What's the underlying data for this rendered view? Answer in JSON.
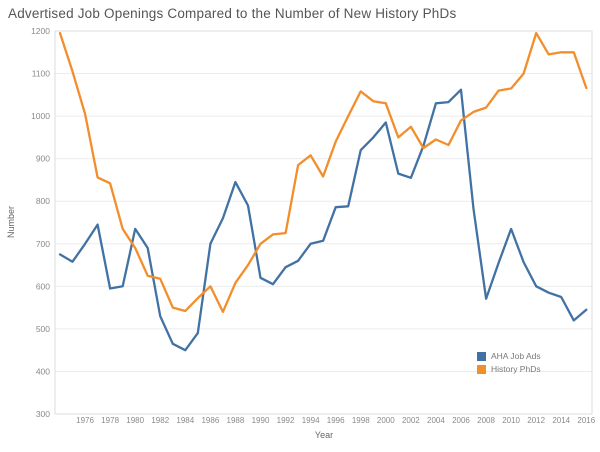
{
  "chart_data": {
    "type": "line",
    "title": "Advertised Job Openings Compared to the Number of New History PhDs",
    "xlabel": "Year",
    "ylabel": "Number",
    "ylim": [
      300,
      1200
    ],
    "ytick_step": 100,
    "yticks": [
      300,
      400,
      500,
      600,
      700,
      800,
      900,
      1000,
      1100,
      1200
    ],
    "xtick_labels": [
      "1976",
      "1978",
      "1980",
      "1982",
      "1984",
      "1986",
      "1988",
      "1990",
      "1992",
      "1994",
      "1996",
      "1998",
      "2000",
      "2002",
      "2004",
      "2006",
      "2008",
      "2010",
      "2012",
      "2014",
      "2016"
    ],
    "x": [
      1974,
      1975,
      1976,
      1977,
      1978,
      1979,
      1980,
      1981,
      1982,
      1983,
      1984,
      1985,
      1986,
      1987,
      1988,
      1989,
      1990,
      1991,
      1992,
      1993,
      1994,
      1995,
      1996,
      1997,
      1998,
      1999,
      2000,
      2001,
      2002,
      2003,
      2004,
      2005,
      2006,
      2007,
      2008,
      2009,
      2010,
      2011,
      2012,
      2013,
      2014,
      2015,
      2016
    ],
    "series": [
      {
        "name": "AHA Job Ads",
        "color": "#4272a4",
        "values": [
          675,
          658,
          700,
          745,
          595,
          600,
          735,
          690,
          530,
          465,
          450,
          490,
          700,
          760,
          845,
          790,
          620,
          605,
          645,
          660,
          700,
          707,
          786,
          788,
          920,
          950,
          985,
          865,
          855,
          930,
          1030,
          1033,
          1062,
          782,
          571,
          655,
          735,
          657,
          600,
          585,
          575,
          520,
          545
        ]
      },
      {
        "name": "History PhDs",
        "color": "#f28e2b",
        "values": [
          1195,
          1105,
          1005,
          856,
          842,
          735,
          690,
          625,
          618,
          550,
          542,
          572,
          600,
          540,
          608,
          650,
          700,
          722,
          725,
          885,
          908,
          858,
          940,
          1000,
          1058,
          1035,
          1030,
          950,
          975,
          925,
          945,
          932,
          990,
          1010,
          1020,
          1060,
          1065,
          1100,
          1195,
          1145,
          1150,
          1150,
          1066
        ]
      }
    ],
    "grid": "horizontal-light",
    "legend_position": "bottom-right-inside"
  },
  "style": {
    "grid_color": "#ececec",
    "border_color": "#dcdcdc",
    "tick_label_color": "#8a8a8a",
    "axis_title_color": "#666666",
    "title_color": "#555555"
  }
}
